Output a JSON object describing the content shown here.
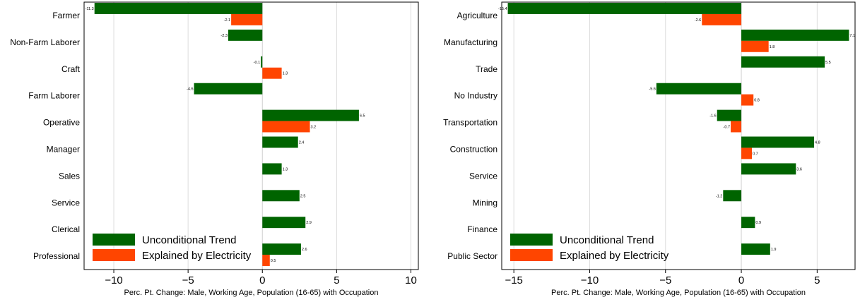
{
  "chart_data": [
    {
      "type": "bar",
      "orientation": "horizontal",
      "xlabel": "Perc.  Pt. Change: Male, Working Age, Population (16-65) with Occupation",
      "xlim": [
        -12,
        10.5
      ],
      "xticks": [
        -10,
        -5,
        0,
        5,
        10
      ],
      "grid": "vertical",
      "legend_position": "bottom-left",
      "categories": [
        "Farmer",
        "Non-Farm Laborer",
        "Craft",
        "Farm Laborer",
        "Operative",
        "Manager",
        "Sales",
        "Service",
        "Clerical",
        "Professional"
      ],
      "series": [
        {
          "name": "Unconditional Trend",
          "color": "#006400",
          "values": [
            -11.3,
            -2.3,
            -0.1,
            -4.6,
            6.5,
            2.4,
            1.3,
            2.5,
            2.9,
            2.6
          ],
          "labels": [
            "-11.3",
            "-2.3",
            "-0.1",
            "-4.6",
            "6.5",
            "2.4",
            "1.3",
            "2.5",
            "2.9",
            "2.6"
          ]
        },
        {
          "name": "Explained by Electricity",
          "color": "#FF4500",
          "values": [
            -2.1,
            null,
            1.3,
            null,
            3.2,
            null,
            null,
            null,
            null,
            0.5
          ],
          "labels": [
            "-2.1",
            "",
            "1.3",
            "",
            "3.2",
            "",
            "",
            "",
            "",
            "0.5"
          ]
        }
      ]
    },
    {
      "type": "bar",
      "orientation": "horizontal",
      "xlabel": "Perc.  Pt. Change: Male, Working Age, Population (16-65) with Occupation",
      "xlim": [
        -15.8,
        7.5
      ],
      "xticks": [
        -15,
        -10,
        -5,
        0,
        5
      ],
      "grid": "vertical",
      "legend_position": "bottom-left",
      "categories": [
        "Agriculture",
        "Manufacturing",
        "Trade",
        "No Industry",
        "Transportation",
        "Construction",
        "Service",
        "Mining",
        "Finance",
        "Public Sector"
      ],
      "series": [
        {
          "name": "Unconditional Trend",
          "color": "#006400",
          "values": [
            -15.4,
            7.1,
            5.5,
            -5.6,
            -1.6,
            4.8,
            3.6,
            -1.2,
            0.9,
            1.9
          ],
          "labels": [
            "-15.4",
            "7.1",
            "5.5",
            "-5.6",
            "-1.6",
            "4.8",
            "3.6",
            "-1.2",
            "0.9",
            "1.9"
          ]
        },
        {
          "name": "Explained by Electricity",
          "color": "#FF4500",
          "values": [
            -2.6,
            1.8,
            null,
            0.8,
            -0.7,
            0.7,
            null,
            null,
            null,
            null
          ],
          "labels": [
            "-2.6",
            "1.8",
            "",
            "0.8",
            "-0.7",
            "0.7",
            "",
            "",
            "",
            ""
          ]
        }
      ]
    }
  ]
}
